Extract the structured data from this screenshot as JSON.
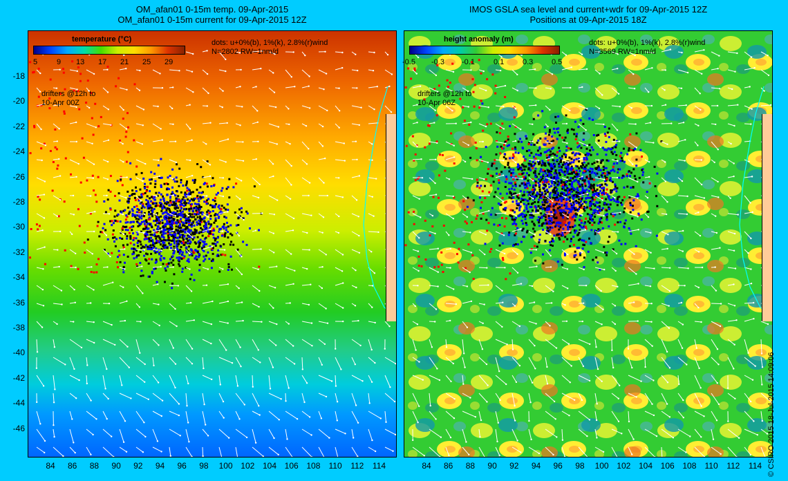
{
  "left_panel": {
    "title_line1": "OM_afan01 0-15m temp. 09-Apr-2015",
    "title_line2": "OM_afan01 0-15m current for 09-Apr-2015 12Z",
    "colorbar_title": "temperature (°C)",
    "colorbar_ticks": [
      "5",
      "9",
      "13",
      "17",
      "21",
      "25",
      "29"
    ],
    "dots_legend_line1": "dots: u+0%(b), 1%(k), 2.8%(r)wind",
    "dots_legend_line2": "N=2802 RW=1nm/d",
    "drifters_line1": "drifters @12h to",
    "drifters_line2": "10-Apr 00Z"
  },
  "right_panel": {
    "title_line1": "IMOS GSLA sea level and current+wdr for 09-Apr-2015 12Z",
    "title_line2": "Positions at 09-Apr-2015 18Z",
    "colorbar_title": "height anomaly (m)",
    "colorbar_ticks": [
      "-0.5",
      "-0.3",
      "-0.1",
      "0.1",
      "0.3",
      "0.5"
    ],
    "dots_legend_line1": "dots: u+0%(b), 1%(k), 2.8%(r)wind",
    "dots_legend_line2": "N=3569 RW=1nm/d",
    "drifters_line1": "drifters @12h to",
    "drifters_line2": "10-Apr 06Z"
  },
  "y_axis_labels": [
    "-18",
    "-20",
    "-22",
    "-24",
    "-26",
    "-28",
    "-30",
    "-32",
    "-34",
    "-36",
    "-38",
    "-40",
    "-42",
    "-44",
    "-46"
  ],
  "x_axis_labels": [
    "84",
    "86",
    "88",
    "90",
    "92",
    "94",
    "96",
    "98",
    "100",
    "102",
    "104",
    "106",
    "108",
    "110",
    "112",
    "114"
  ],
  "credit": "© CSIRO 2015   18-Jul-2015 14:09:06",
  "colors": {
    "background": "#00ccff",
    "dots_blue": "#0000ff",
    "dots_black": "#000000",
    "dots_red": "#ff0000",
    "land": "#ffcc99",
    "coast_contour": "#00ffff"
  }
}
